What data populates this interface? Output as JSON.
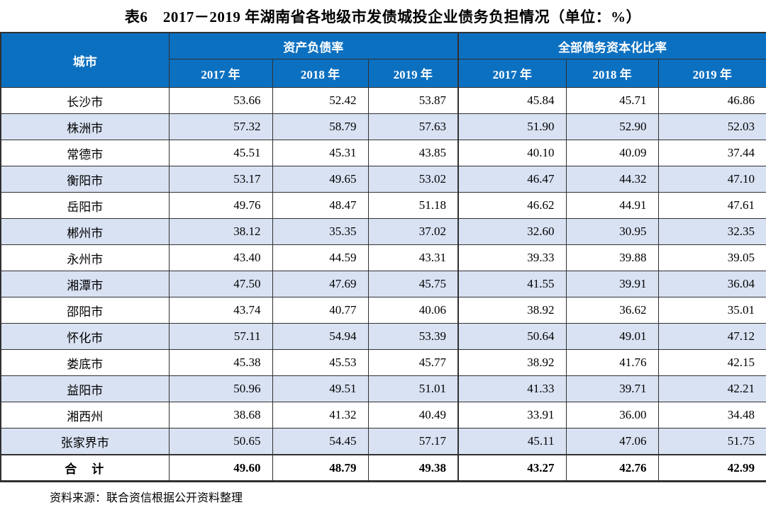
{
  "page": {
    "title": "表6　2017－2019 年湖南省各地级市发债城投企业债务负担情况（单位：%）",
    "source_note": "资料来源：联合资信根据公开资料整理"
  },
  "colors": {
    "header_bg": "#0c70c0",
    "header_text": "#ffffff",
    "row_alt_bg": "#d9e2f3",
    "border": "#303030",
    "body_text": "#000000"
  },
  "table": {
    "corner_header": "城市",
    "groups": [
      {
        "label": "资产负债率",
        "years": [
          "2017 年",
          "2018 年",
          "2019 年"
        ]
      },
      {
        "label": "全部债务资本化比率",
        "years": [
          "2017 年",
          "2018 年",
          "2019 年"
        ]
      }
    ],
    "rows": [
      {
        "city": "长沙市",
        "values": [
          "53.66",
          "52.42",
          "53.87",
          "45.84",
          "45.71",
          "46.86"
        ]
      },
      {
        "city": "株洲市",
        "values": [
          "57.32",
          "58.79",
          "57.63",
          "51.90",
          "52.90",
          "52.03"
        ]
      },
      {
        "city": "常德市",
        "values": [
          "45.51",
          "45.31",
          "43.85",
          "40.10",
          "40.09",
          "37.44"
        ]
      },
      {
        "city": "衡阳市",
        "values": [
          "53.17",
          "49.65",
          "53.02",
          "46.47",
          "44.32",
          "47.10"
        ]
      },
      {
        "city": "岳阳市",
        "values": [
          "49.76",
          "48.47",
          "51.18",
          "46.62",
          "44.91",
          "47.61"
        ]
      },
      {
        "city": "郴州市",
        "values": [
          "38.12",
          "35.35",
          "37.02",
          "32.60",
          "30.95",
          "32.35"
        ]
      },
      {
        "city": "永州市",
        "values": [
          "43.40",
          "44.59",
          "43.31",
          "39.33",
          "39.88",
          "39.05"
        ]
      },
      {
        "city": "湘潭市",
        "values": [
          "47.50",
          "47.69",
          "45.75",
          "41.55",
          "39.91",
          "36.04"
        ]
      },
      {
        "city": "邵阳市",
        "values": [
          "43.74",
          "40.77",
          "40.06",
          "38.92",
          "36.62",
          "35.01"
        ]
      },
      {
        "city": "怀化市",
        "values": [
          "57.11",
          "54.94",
          "53.39",
          "50.64",
          "49.01",
          "47.12"
        ]
      },
      {
        "city": "娄底市",
        "values": [
          "45.38",
          "45.53",
          "45.77",
          "38.92",
          "41.76",
          "42.15"
        ]
      },
      {
        "city": "益阳市",
        "values": [
          "50.96",
          "49.51",
          "51.01",
          "41.33",
          "39.71",
          "42.21"
        ]
      },
      {
        "city": "湘西州",
        "values": [
          "38.68",
          "41.32",
          "40.49",
          "33.91",
          "36.00",
          "34.48"
        ]
      },
      {
        "city": "张家界市",
        "values": [
          "50.65",
          "54.45",
          "57.17",
          "45.11",
          "47.06",
          "51.75"
        ]
      }
    ],
    "total_row": {
      "city": "合　计",
      "values": [
        "49.60",
        "48.79",
        "49.38",
        "43.27",
        "42.76",
        "42.99"
      ]
    }
  }
}
